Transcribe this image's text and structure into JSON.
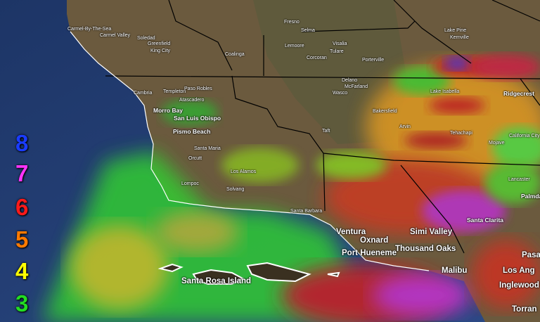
{
  "legend": {
    "items": [
      {
        "value": "8",
        "color": "#1a3cff"
      },
      {
        "value": "7",
        "color": "#ff33ff"
      },
      {
        "value": "6",
        "color": "#ff1a1a"
      },
      {
        "value": "5",
        "color": "#ff7a00"
      },
      {
        "value": "4",
        "color": "#ffff00"
      },
      {
        "value": "3",
        "color": "#22dd22"
      }
    ]
  },
  "places": {
    "carmel_by_the_sea": "Carmel-By-The-Sea",
    "carmel_valley": "Carmel Valley",
    "soledad": "Soledad",
    "greenfield": "Greenfield",
    "king_city": "King City",
    "coalinga": "Coalinga",
    "fresno": "Fresno",
    "selma": "Selma",
    "lemoore": "Lemoore",
    "corcoran": "Corcoran",
    "visalia": "Visalia",
    "tulare": "Tulare",
    "porterville": "Porterville",
    "delano": "Delano",
    "mcfarland": "McFarland",
    "wasco": "Wasco",
    "bakersfield": "Bakersfield",
    "arvin": "Arvin",
    "taft": "Taft",
    "cambria": "Cambria",
    "templeton": "Templeton",
    "paso_robles": "Paso Robles",
    "atascadero": "Atascadero",
    "morro_bay": "Morro Bay",
    "san_luis_obispo": "San Luis Obispo",
    "pismo_beach": "Pismo Beach",
    "lake_isabella": "Lake Isabella",
    "tehachapi": "Tehachapi",
    "mojave": "Mojave",
    "california_city": "California City",
    "ridgecrest": "Ridgecrest",
    "lake_pine": "Lake Pine",
    "kernville": "Kernville",
    "santa_maria": "Santa Maria",
    "orcutt": "Orcutt",
    "los_alamos": "Los Alamos",
    "lompoc": "Lompoc",
    "solvang": "Solvang",
    "santa_barbara": "Santa Barbara",
    "lancaster": "Lancaster",
    "palmdale": "Palmdale",
    "santa_clarita": "Santa Clarita",
    "ventura": "Ventura",
    "oxnard": "Oxnard",
    "simi_valley": "Simi Valley",
    "port_hueneme": "Port Hueneme",
    "thousand_oaks": "Thousand Oaks",
    "malibu": "Malibu",
    "pasadena": "Pasa",
    "los_angeles": "Los Ang",
    "inglewood": "Inglewood",
    "torrance": "Torran",
    "santa_rosa_island": "Santa Rosa Island"
  }
}
